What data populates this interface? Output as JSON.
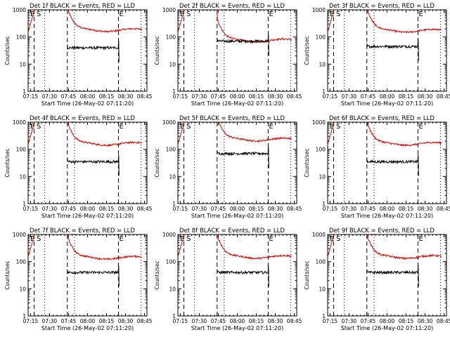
{
  "chart_data": [
    {
      "type": "line",
      "title": "Det 1f BLACK = Events, RED = LLD",
      "marker_labels": [
        "E",
        "S",
        "E"
      ],
      "xlabel": "Start Time (26-May-02 07:11:20)",
      "ylabel": "Counts/sec",
      "xticks": [
        "07:15",
        "07:30",
        "07:45",
        "08:00",
        "08:15",
        "08:30",
        "08:45"
      ],
      "yticks": [
        "1",
        "10",
        "100",
        "1000"
      ],
      "ylim": [
        1,
        1000
      ],
      "yscale": "log",
      "series": [
        {
          "name": "Events",
          "color": "#000000",
          "level": 40
        },
        {
          "name": "LLD",
          "color": "#dd0000",
          "level": 180
        }
      ]
    },
    {
      "type": "line",
      "title": "Det 2f BLACK = Events, RED = LLD",
      "marker_labels": [
        "E",
        "S",
        "E"
      ],
      "xlabel": "Start Time (26-May-02 07:11:20)",
      "ylabel": "Counts/sec",
      "xticks": [
        "07:15",
        "07:30",
        "07:45",
        "08:00",
        "08:15",
        "08:30",
        "08:45"
      ],
      "yticks": [
        "1",
        "10",
        "100",
        "1000"
      ],
      "ylim": [
        1,
        1000
      ],
      "yscale": "log",
      "series": [
        {
          "name": "Events",
          "color": "#000000",
          "level": 70
        },
        {
          "name": "LLD",
          "color": "#dd0000",
          "level": 75
        }
      ]
    },
    {
      "type": "line",
      "title": "Det 3f BLACK = Events, RED = LLD",
      "marker_labels": [
        "E",
        "S",
        "E"
      ],
      "xlabel": "Start Time (26-May-02 07:11:20)",
      "ylabel": "Counts/sec",
      "xticks": [
        "07:15",
        "07:30",
        "07:45",
        "08:00",
        "08:15",
        "08:30",
        "08:45"
      ],
      "yticks": [
        "1",
        "10",
        "100",
        "1000"
      ],
      "ylim": [
        1,
        1000
      ],
      "yscale": "log",
      "series": [
        {
          "name": "Events",
          "color": "#000000",
          "level": 45
        },
        {
          "name": "LLD",
          "color": "#dd0000",
          "level": 170
        }
      ]
    },
    {
      "type": "line",
      "title": "Det 4f BLACK = Events, RED = LLD",
      "marker_labels": [
        "E",
        "S",
        "E"
      ],
      "xlabel": "Start Time (26-May-02 07:11:20)",
      "ylabel": "Counts/sec",
      "xticks": [
        "07:15",
        "07:30",
        "07:45",
        "08:00",
        "08:15",
        "08:30",
        "08:45"
      ],
      "yticks": [
        "1",
        "10",
        "100",
        "1000"
      ],
      "ylim": [
        1,
        1000
      ],
      "yscale": "log",
      "series": [
        {
          "name": "Events",
          "color": "#000000",
          "level": 35
        },
        {
          "name": "LLD",
          "color": "#dd0000",
          "level": 160
        }
      ]
    },
    {
      "type": "line",
      "title": "Det 5f BLACK = Events, RED = LLD",
      "marker_labels": [
        "E",
        "S",
        "E"
      ],
      "xlabel": "Start Time (26-May-02 07:11:20)",
      "ylabel": "Counts/sec",
      "xticks": [
        "07:15",
        "07:30",
        "07:45",
        "08:00",
        "08:15",
        "08:30",
        "08:45"
      ],
      "yticks": [
        "1",
        "10",
        "100",
        "1000"
      ],
      "ylim": [
        1,
        1000
      ],
      "yscale": "log",
      "series": [
        {
          "name": "Events",
          "color": "#000000",
          "level": 70
        },
        {
          "name": "LLD",
          "color": "#dd0000",
          "level": 230
        }
      ]
    },
    {
      "type": "line",
      "title": "Det 6f BLACK = Events, RED = LLD",
      "marker_labels": [
        "E",
        "S",
        "E"
      ],
      "xlabel": "Start Time (26-May-02 07:11:20)",
      "ylabel": "Counts/sec",
      "xticks": [
        "07:15",
        "07:30",
        "07:45",
        "08:00",
        "08:15",
        "08:30",
        "08:45"
      ],
      "yticks": [
        "1",
        "10",
        "100",
        "1000"
      ],
      "ylim": [
        1,
        1000
      ],
      "yscale": "log",
      "series": [
        {
          "name": "Events",
          "color": "#000000",
          "level": 35
        },
        {
          "name": "LLD",
          "color": "#dd0000",
          "level": 160
        }
      ]
    },
    {
      "type": "line",
      "title": "Det 7f BLACK = Events, RED = LLD",
      "marker_labels": [
        "E",
        "S",
        "E"
      ],
      "xlabel": "Start Time (26-May-02 07:11:20)",
      "ylabel": "Counts/sec",
      "xticks": [
        "07:15",
        "07:30",
        "07:45",
        "08:00",
        "08:15",
        "08:30",
        "08:45"
      ],
      "yticks": [
        "1",
        "10",
        "100",
        "1000"
      ],
      "ylim": [
        1,
        1000
      ],
      "yscale": "log",
      "series": [
        {
          "name": "Events",
          "color": "#000000",
          "level": 40
        },
        {
          "name": "LLD",
          "color": "#dd0000",
          "level": 140
        }
      ]
    },
    {
      "type": "line",
      "title": "Det 8f BLACK = Events, RED = LLD",
      "marker_labels": [
        "E",
        "S",
        "E"
      ],
      "xlabel": "Start Time (26-May-02 07:11:20)",
      "ylabel": "Counts/sec",
      "xticks": [
        "07:15",
        "07:30",
        "07:45",
        "08:00",
        "08:15",
        "08:30",
        "08:45"
      ],
      "yticks": [
        "1",
        "10",
        "100",
        "1000"
      ],
      "ylim": [
        1,
        1000
      ],
      "yscale": "log",
      "series": [
        {
          "name": "Events",
          "color": "#000000",
          "level": 40
        },
        {
          "name": "LLD",
          "color": "#dd0000",
          "level": 150
        }
      ]
    },
    {
      "type": "line",
      "title": "Det 9f BLACK = Events, RED = LLD",
      "marker_labels": [
        "E",
        "S",
        "E"
      ],
      "xlabel": "Start Time (26-May-02 07:11:20)",
      "ylabel": "Counts/sec",
      "xticks": [
        "07:15",
        "07:30",
        "07:45",
        "08:00",
        "08:15",
        "08:30",
        "08:45"
      ],
      "yticks": [
        "1",
        "10",
        "100",
        "1000"
      ],
      "ylim": [
        1,
        1000
      ],
      "yscale": "log",
      "series": [
        {
          "name": "Events",
          "color": "#000000",
          "level": 40
        },
        {
          "name": "LLD",
          "color": "#dd0000",
          "level": 150
        }
      ]
    }
  ]
}
